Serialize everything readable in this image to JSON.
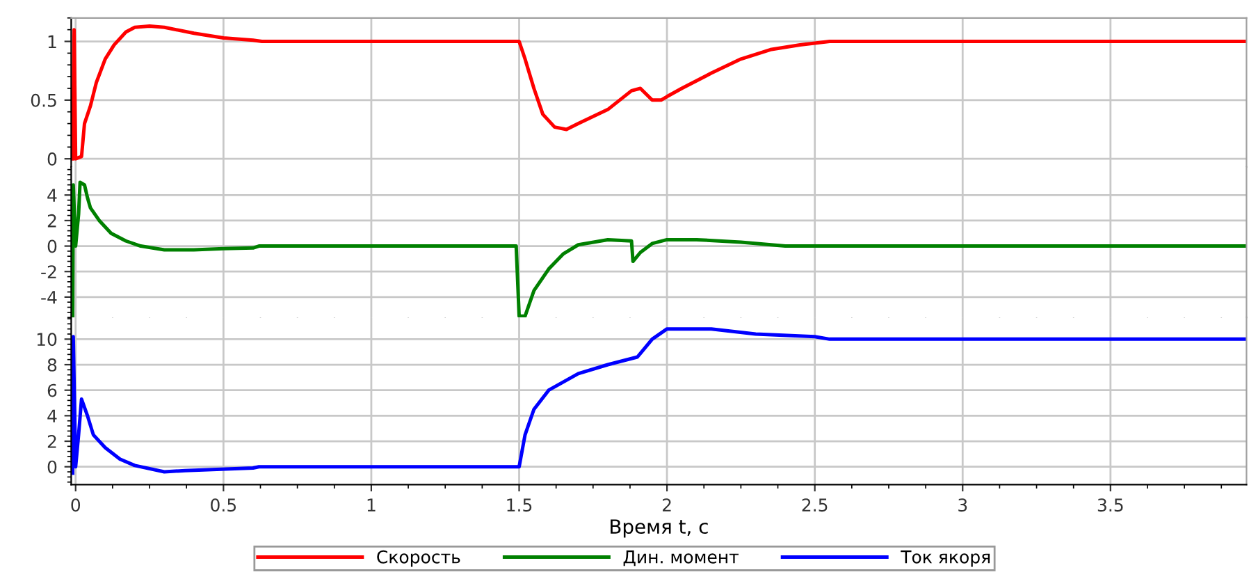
{
  "chart_data": [
    {
      "type": "line",
      "xlim": [
        -0.015,
        3.96
      ],
      "xticks": [
        0,
        0.5,
        1,
        1.5,
        2,
        2.5,
        3,
        3.5
      ],
      "ylim": [
        -0.07,
        1.2
      ],
      "yticks": [
        0,
        0.5,
        1
      ],
      "grid": true,
      "legend": "bottom",
      "tick_labels": "y",
      "series": [
        {
          "name": "Скорость",
          "color": "#ff0000",
          "x": [
            -0.01,
            -0.005,
            0,
            0.02,
            0.03,
            0.05,
            0.07,
            0.1,
            0.13,
            0.17,
            0.2,
            0.25,
            0.3,
            0.4,
            0.5,
            0.6,
            0.63,
            1.5,
            1.52,
            1.55,
            1.58,
            1.62,
            1.66,
            1.7,
            1.8,
            1.88,
            1.91,
            1.95,
            1.98,
            2.0,
            2.05,
            2.15,
            2.25,
            2.35,
            2.45,
            2.55,
            3.96
          ],
          "values": [
            0,
            1.1,
            0,
            0.02,
            0.3,
            0.45,
            0.65,
            0.85,
            0.97,
            1.08,
            1.12,
            1.13,
            1.12,
            1.07,
            1.03,
            1.01,
            1.0,
            1.0,
            0.85,
            0.6,
            0.38,
            0.27,
            0.25,
            0.3,
            0.42,
            0.58,
            0.6,
            0.5,
            0.5,
            0.53,
            0.6,
            0.73,
            0.85,
            0.93,
            0.97,
            1.0,
            1.0
          ]
        }
      ]
    },
    {
      "type": "line",
      "xlim": [
        -0.015,
        3.96
      ],
      "xticks": [
        0,
        0.5,
        1,
        1.5,
        2,
        2.5,
        3,
        3.5
      ],
      "ylim": [
        -5.6,
        6.2
      ],
      "yticks": [
        -4,
        -2,
        0,
        2,
        4
      ],
      "grid": true,
      "legend": "bottom",
      "tick_labels": "y",
      "series": [
        {
          "name": "Дин. момент",
          "color": "#008000",
          "x": [
            -0.01,
            -0.008,
            0.0,
            0.01,
            0.015,
            0.03,
            0.04,
            0.05,
            0.08,
            0.12,
            0.17,
            0.22,
            0.3,
            0.4,
            0.5,
            0.6,
            0.62,
            1.49,
            1.5,
            1.52,
            1.55,
            1.6,
            1.65,
            1.7,
            1.8,
            1.88,
            1.885,
            1.91,
            1.95,
            2.0,
            2.1,
            2.25,
            2.4,
            3.96
          ],
          "values": [
            -5.5,
            4.8,
            0,
            2.5,
            5,
            4.8,
            3.8,
            3,
            2,
            1,
            0.4,
            0,
            -0.3,
            -0.3,
            -0.2,
            -0.15,
            0,
            0,
            -5.5,
            -5.5,
            -3.5,
            -1.8,
            -0.6,
            0.1,
            0.5,
            0.4,
            -1.2,
            -0.5,
            0.2,
            0.5,
            0.5,
            0.3,
            0,
            0
          ]
        }
      ]
    },
    {
      "type": "line",
      "xlim": [
        -0.015,
        3.96
      ],
      "xticks": [
        0,
        0.5,
        1,
        1.5,
        2,
        2.5,
        3,
        3.5
      ],
      "ylim": [
        -1.4,
        11.7
      ],
      "yticks": [
        0,
        2,
        4,
        6,
        8,
        10
      ],
      "grid": true,
      "legend": "bottom",
      "xlabel": "Время t, с",
      "series": [
        {
          "name": "Ток якоря",
          "color": "#0000ff",
          "x": [
            -0.01,
            -0.008,
            0,
            0.01,
            0.02,
            0.04,
            0.06,
            0.1,
            0.15,
            0.2,
            0.3,
            0.37,
            0.6,
            0.62,
            1.5,
            1.52,
            1.55,
            1.6,
            1.7,
            1.8,
            1.9,
            1.95,
            2.0,
            2.15,
            2.3,
            2.5,
            2.55,
            3.96
          ],
          "values": [
            -0.5,
            10.2,
            0,
            2.5,
            5.3,
            4,
            2.5,
            1.5,
            0.6,
            0.1,
            -0.4,
            -0.3,
            -0.1,
            0,
            0,
            2.5,
            4.5,
            6,
            7.3,
            8,
            8.6,
            10,
            10.8,
            10.8,
            10.4,
            10.2,
            10,
            10
          ]
        }
      ]
    }
  ]
}
